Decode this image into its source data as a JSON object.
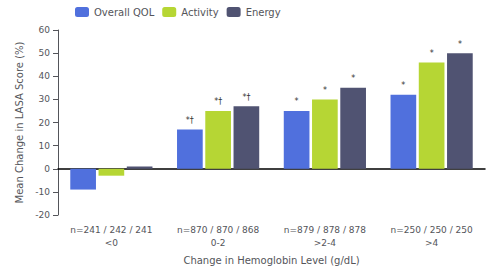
{
  "chart_data": {
    "type": "bar",
    "categories": [
      "n=241 / 242 / 241\n<0",
      "n=870 / 870 / 868\n0-2",
      "n=879 / 878 / 878\n>2-4",
      "n=250 / 250 / 250\n>4"
    ],
    "series": [
      {
        "name": "Overall QOL",
        "values": [
          -9,
          17,
          25,
          32
        ],
        "annotations": [
          null,
          "*†",
          "*",
          "*"
        ]
      },
      {
        "name": "Activity",
        "values": [
          -3,
          25,
          30,
          46
        ],
        "annotations": [
          null,
          "*†",
          "*",
          "*"
        ]
      },
      {
        "name": "Energy",
        "values": [
          1,
          27,
          35,
          50
        ],
        "annotations": [
          null,
          "*†",
          "*",
          "*"
        ]
      }
    ],
    "ylabel": "Mean Change in LASA Score (%)",
    "xlabel": "Change in Hemoglobin Level (g/dL)",
    "ylim": [
      -20,
      60
    ],
    "yticks": [
      -20,
      -10,
      0,
      10,
      20,
      30,
      40,
      50,
      60
    ],
    "grid": false,
    "legend": "upper left"
  }
}
